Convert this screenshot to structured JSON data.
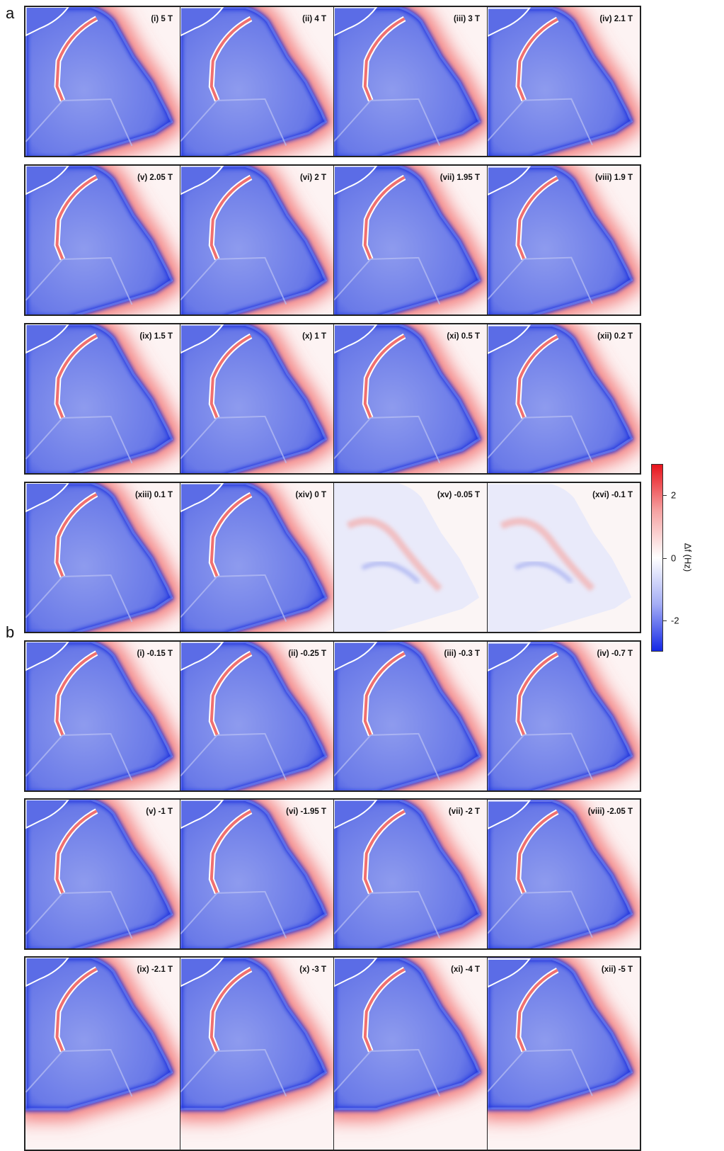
{
  "figure": {
    "panel_a": {
      "letter": "a",
      "labels": [
        "(i) 5 T",
        "(ii) 4 T",
        "(iii) 3 T",
        "(iv) 2.1 T",
        "(v) 2.05 T",
        "(vi) 2 T",
        "(vii) 1.95 T",
        "(viii) 1.9 T",
        "(ix) 1.5 T",
        "(x) 1 T",
        "(xi) 0.5 T",
        "(xii) 0.2 T",
        "(xiii) 0.1 T",
        "(xiv) 0 T",
        "(xv) -0.05 T",
        "(xvi) -0.1 T"
      ]
    },
    "panel_b": {
      "letter": "b",
      "labels": [
        "(i) -0.15 T",
        "(ii) -0.25 T",
        "(iii) -0.3 T",
        "(iv) -0.7 T",
        "(v) -1 T",
        "(vi) -1.95 T",
        "(vii) -2 T",
        "(viii) -2.05 T",
        "(ix) -2.1 T",
        "(x) -3 T",
        "(xi) -4 T",
        "(xii) -5 T"
      ]
    },
    "colorbar": {
      "label": "Δf (Hz)",
      "lim": [
        -3,
        3
      ],
      "ticks": [
        2,
        0,
        -2
      ]
    }
  }
}
